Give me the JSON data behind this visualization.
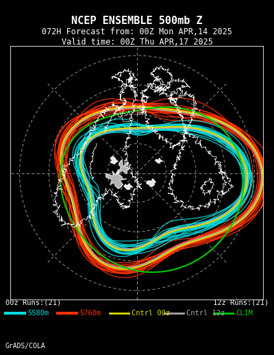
{
  "title_line1": "NCEP ENSEMBLE 500mb Z",
  "title_line2": "072H Forecast from: 00Z Mon APR,14 2025",
  "title_line3": "Valid time: 00Z Thu APR,17 2025",
  "background_color": "#000000",
  "text_color": "#ffffff",
  "border_color": "#ffffff",
  "grid_color": "#aaaaaa",
  "label_left": "00z Runs:(21)",
  "label_right": "12z Runs:(21)",
  "credit": "GrADS/COLA",
  "legend_items": [
    {
      "label": "5580m",
      "color": "#00dddd",
      "lw": 3
    },
    {
      "label": "5760m",
      "color": "#ff3300",
      "lw": 3
    },
    {
      "label": "Cntrl 00z",
      "color": "#dddd00",
      "lw": 2
    },
    {
      "label": "Cntrl 12z",
      "color": "#aaaaaa",
      "lw": 2
    },
    {
      "label": "CLIM",
      "color": "#00cc00",
      "lw": 2
    }
  ],
  "ensemble_5580_color": "#00dddd",
  "ensemble_5760_color": "#ff3300",
  "control_00z_color": "#dddd00",
  "control_12z_color": "#aaaaaa",
  "clim_color": "#00cc00",
  "figsize": [
    4.0,
    5.18
  ],
  "dpi": 100
}
